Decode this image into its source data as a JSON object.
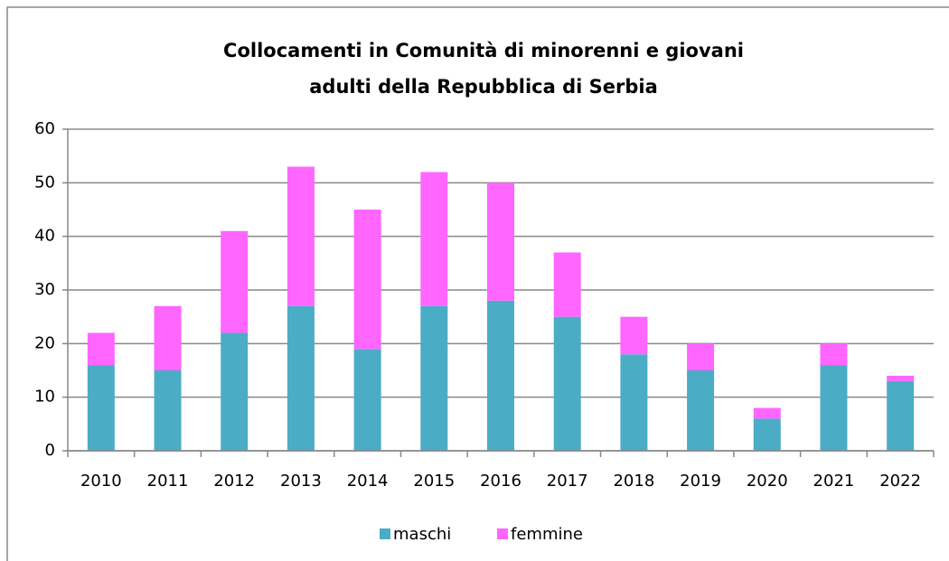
{
  "chart_data": {
    "type": "stacked_bar",
    "title": "Collocamenti in Comunità di minorenni e giovani adulti della Repubblica di Serbia",
    "categories": [
      "2010",
      "2011",
      "2012",
      "2013",
      "2014",
      "2015",
      "2016",
      "2017",
      "2018",
      "2019",
      "2020",
      "2021",
      "2022"
    ],
    "series": [
      {
        "name": "maschi",
        "color": "#4bacc6",
        "values": [
          16,
          15,
          22,
          27,
          19,
          27,
          28,
          25,
          18,
          15,
          6,
          16,
          13
        ]
      },
      {
        "name": "femmine",
        "color": "#ff66ff",
        "values": [
          6,
          12,
          19,
          26,
          26,
          25,
          22,
          12,
          7,
          5,
          2,
          4,
          1
        ]
      }
    ],
    "ylim": [
      0,
      60
    ],
    "yticks": [
      0,
      10,
      20,
      30,
      40,
      50,
      60
    ],
    "grid": true,
    "legend": "bottom"
  }
}
